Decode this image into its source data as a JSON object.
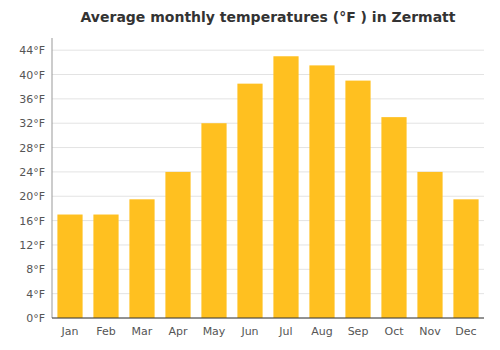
{
  "chart_data": {
    "type": "bar",
    "title": "Average monthly temperatures (°F ) in Zermatt",
    "categories": [
      "Jan",
      "Feb",
      "Mar",
      "Apr",
      "May",
      "Jun",
      "Jul",
      "Aug",
      "Sep",
      "Oct",
      "Nov",
      "Dec"
    ],
    "values": [
      17,
      17,
      19.5,
      24,
      32,
      38.5,
      43,
      41.5,
      39,
      33,
      24,
      19.5
    ],
    "color": "#FFC020",
    "ylim": [
      0,
      46
    ],
    "yticks": [
      {
        "value": 0,
        "label": "0°F"
      },
      {
        "value": 4,
        "label": "4°F"
      },
      {
        "value": 8,
        "label": "8°F"
      },
      {
        "value": 12,
        "label": "12°F"
      },
      {
        "value": 16,
        "label": "16°F"
      },
      {
        "value": 20,
        "label": "20°F"
      },
      {
        "value": 24,
        "label": "24°F"
      },
      {
        "value": 28,
        "label": "28°F"
      },
      {
        "value": 32,
        "label": "32°F"
      },
      {
        "value": 36,
        "label": "36°F"
      },
      {
        "value": 40,
        "label": "40°F"
      },
      {
        "value": 44,
        "label": "44°F"
      }
    ],
    "grid": true
  }
}
